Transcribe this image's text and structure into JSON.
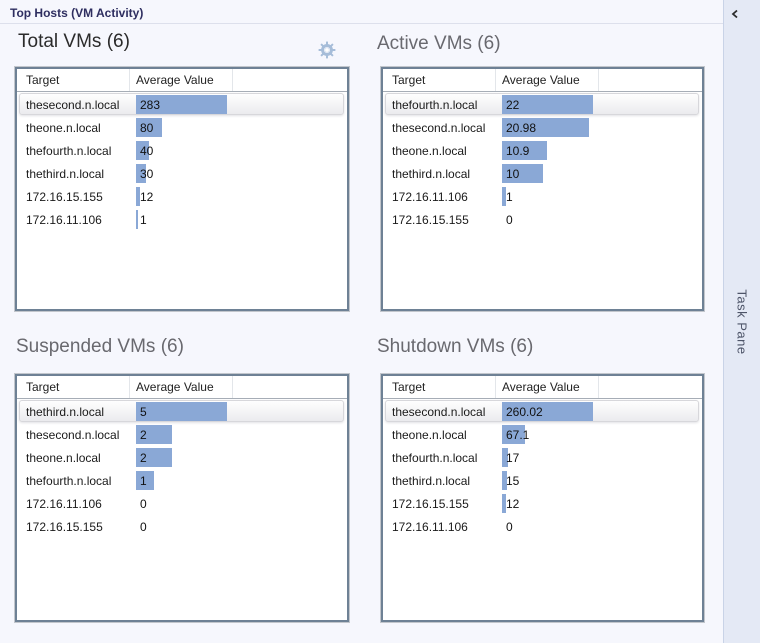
{
  "header": {
    "title": "Top Hosts (VM Activity)"
  },
  "task_pane": {
    "label": "Task Pane"
  },
  "columns": {
    "target": "Target",
    "value": "Average Value"
  },
  "colors": {
    "bar": "#8aa8d6",
    "page_background": "#f6f7fd",
    "task_pane_background": "#e4e9f5",
    "header_text": "#2e2e60",
    "focused_title": "#2b2b2b",
    "title": "#69696f"
  },
  "panels": [
    {
      "id": "total-vms",
      "title": "Total VMs (6)",
      "rows": [
        {
          "target": "thesecond.n.local",
          "value": "283",
          "num": 283,
          "selected": true
        },
        {
          "target": "theone.n.local",
          "value": "80",
          "num": 80
        },
        {
          "target": "thefourth.n.local",
          "value": "40",
          "num": 40
        },
        {
          "target": "thethird.n.local",
          "value": "30",
          "num": 30
        },
        {
          "target": "172.16.15.155",
          "value": "12",
          "num": 12
        },
        {
          "target": "172.16.11.106",
          "value": "1",
          "num": 1
        }
      ]
    },
    {
      "id": "active-vms",
      "title": "Active VMs (6)",
      "rows": [
        {
          "target": "thefourth.n.local",
          "value": "22",
          "num": 22,
          "selected": true
        },
        {
          "target": "thesecond.n.local",
          "value": "20.98",
          "num": 20.98
        },
        {
          "target": "theone.n.local",
          "value": "10.9",
          "num": 10.9
        },
        {
          "target": "thethird.n.local",
          "value": "10",
          "num": 10
        },
        {
          "target": "172.16.11.106",
          "value": "1",
          "num": 1
        },
        {
          "target": "172.16.15.155",
          "value": "0",
          "num": 0
        }
      ]
    },
    {
      "id": "suspended-vms",
      "title": "Suspended VMs (6)",
      "rows": [
        {
          "target": "thethird.n.local",
          "value": "5",
          "num": 5,
          "selected": true
        },
        {
          "target": "thesecond.n.local",
          "value": "2",
          "num": 2
        },
        {
          "target": "theone.n.local",
          "value": "2",
          "num": 2
        },
        {
          "target": "thefourth.n.local",
          "value": "1",
          "num": 1
        },
        {
          "target": "172.16.11.106",
          "value": "0",
          "num": 0
        },
        {
          "target": "172.16.15.155",
          "value": "0",
          "num": 0
        }
      ]
    },
    {
      "id": "shutdown-vms",
      "title": "Shutdown VMs (6)",
      "rows": [
        {
          "target": "thesecond.n.local",
          "value": "260.02",
          "num": 260.02,
          "selected": true
        },
        {
          "target": "theone.n.local",
          "value": "67.1",
          "num": 67.1
        },
        {
          "target": "thefourth.n.local",
          "value": "17",
          "num": 17
        },
        {
          "target": "thethird.n.local",
          "value": "15",
          "num": 15
        },
        {
          "target": "172.16.15.155",
          "value": "12",
          "num": 12
        },
        {
          "target": "172.16.11.106",
          "value": "0",
          "num": 0
        }
      ]
    }
  ]
}
